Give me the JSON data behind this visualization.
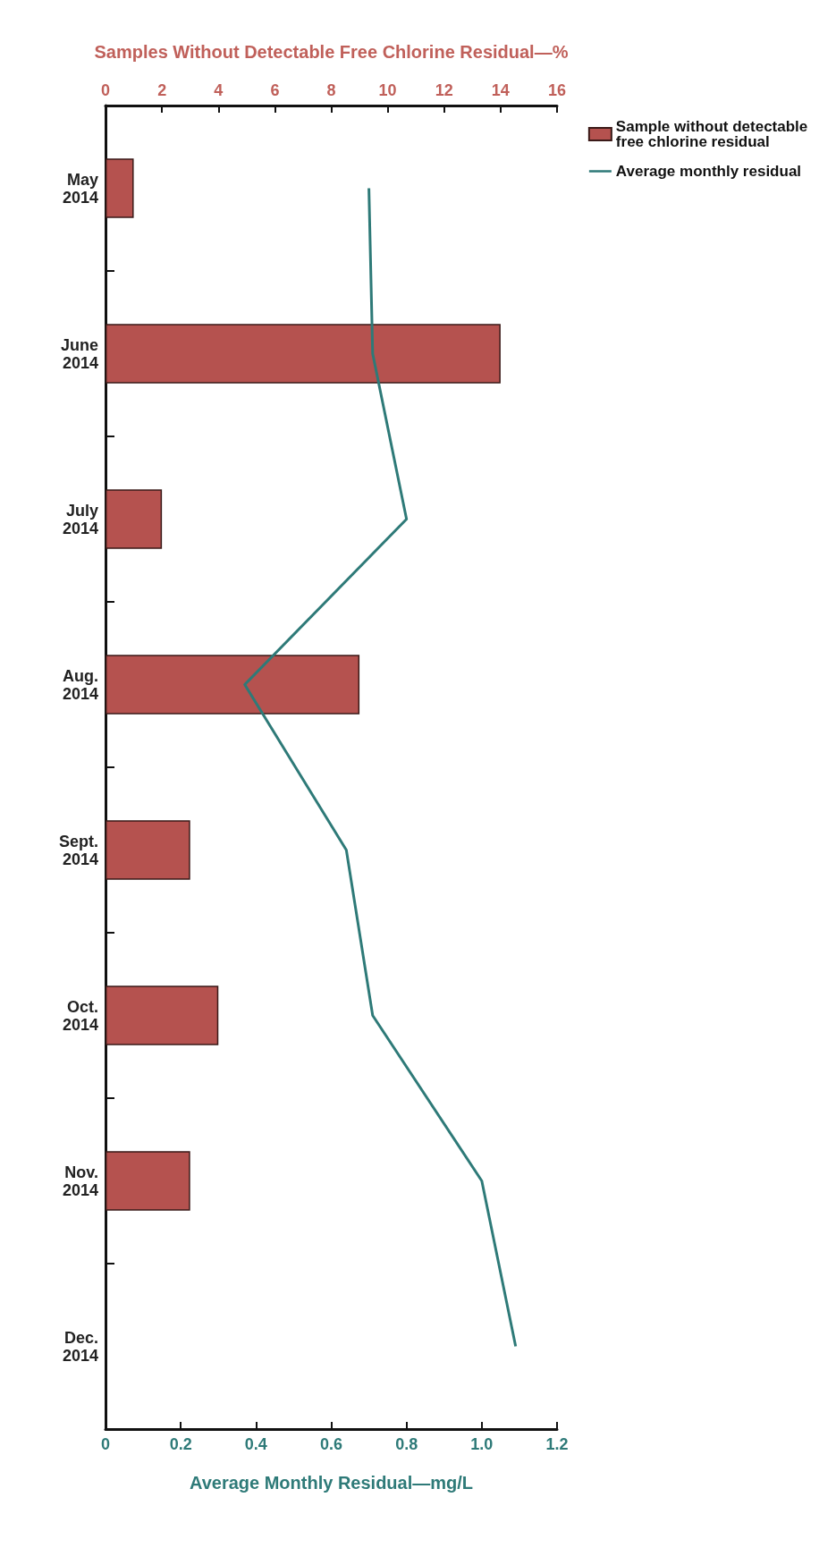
{
  "chart_data": {
    "type": "bar",
    "orientation": "horizontal",
    "xlabel": "Average Monthly Residual—mg/L",
    "x2label": "Samples Without Detectable Free Chlorine Residual—%",
    "categories": [
      "May 2014",
      "June 2014",
      "July 2014",
      "Aug. 2014",
      "Sept. 2014",
      "Oct. 2014",
      "Nov. 2014",
      "Dec. 2014"
    ],
    "series": [
      {
        "name": "Sample without detectable free chlorine residual",
        "axis": "x2",
        "color": "#b5524f",
        "values": [
          1,
          14,
          2,
          9,
          3,
          4,
          3,
          null
        ]
      },
      {
        "name": "Average monthly residual",
        "type": "line",
        "color": "#2e7a78",
        "values": [
          0.7,
          0.71,
          0.8,
          0.37,
          0.64,
          0.71,
          1.0,
          1.09
        ]
      }
    ],
    "xlim": [
      0,
      1.2
    ],
    "xticks": [
      0,
      0.2,
      0.4,
      0.6,
      0.8,
      {
        "value": 1,
        "label": "1.0"
      },
      1.2
    ],
    "x2lim": [
      0,
      16
    ],
    "x2ticks": [
      0,
      2,
      4,
      6,
      8,
      10,
      12,
      14,
      16
    ],
    "grid": false,
    "legend": "right",
    "marker": "none",
    "line_style": "solid"
  }
}
